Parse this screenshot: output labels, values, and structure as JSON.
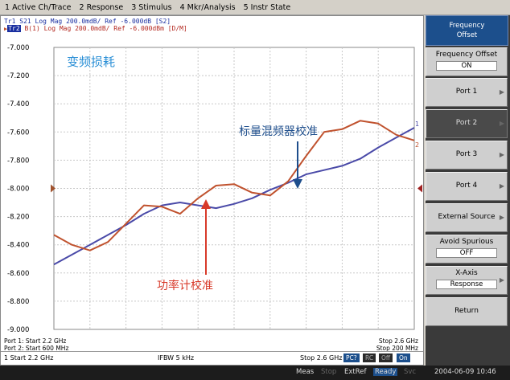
{
  "menu": [
    "1 Active Ch/Trace",
    "2 Response",
    "3 Stimulus",
    "4 Mkr/Analysis",
    "5 Instr State"
  ],
  "trace_header": {
    "tr1": "Tr1 S21 Log Mag 200.0mdB/ Ref -6.000dB [S2]",
    "tr2_badge": "Tr2",
    "tr2": " B(1) Log Mag 200.0mdB/ Ref -6.000dBm [D/M]"
  },
  "annotations": {
    "title": "变频损耗",
    "scalar": "标量混频器校准",
    "power": "功率计校准"
  },
  "footer": {
    "left1": "Port 1: Start 2.2 GHz",
    "left2": "Port 2: Start 600 MHz",
    "right1": "Stop 2.6 GHz",
    "right2": "Stop 200 MHz"
  },
  "status": {
    "start": "1  Start 2.2 GHz",
    "ifbw": "IFBW 5 kHz",
    "stop": "Stop 2.6 GHz",
    "chips": [
      "PC?",
      "RC",
      "Off",
      "On"
    ]
  },
  "softkeys": {
    "title_line1": "Frequency",
    "title_line2": "Offset",
    "freq_offset_label": "Frequency Offset",
    "freq_offset_value": "ON",
    "port1": "Port 1",
    "port2": "Port 2",
    "port3": "Port 3",
    "port4": "Port 4",
    "external_source": "External Source",
    "avoid_spurious_label": "Avoid Spurious",
    "avoid_spurious_value": "OFF",
    "xaxis_label": "X-Axis",
    "xaxis_value": "Response",
    "return": "Return"
  },
  "bottombar": {
    "meas": "Meas",
    "stop": "Stop",
    "extref": "ExtRef",
    "ready": "Ready",
    "svc": "Svc",
    "datetime": "2004-06-09 10:46"
  },
  "colors": {
    "trace1": "#4a4aa8",
    "trace2": "#c0522e",
    "scalar_arrow": "#1e4e8c",
    "power_arrow": "#d83a2a",
    "annotation_blue": "#2a8fd6"
  },
  "chart_data": {
    "type": "line",
    "ylim": [
      -9.0,
      -7.0
    ],
    "yticks": [
      "-7.000",
      "-7.200",
      "-7.400",
      "-7.600",
      "-7.800",
      "-8.000",
      "-8.200",
      "-8.400",
      "-8.600",
      "-8.800",
      "-9.000"
    ],
    "x": [
      0,
      0.05,
      0.1,
      0.15,
      0.2,
      0.25,
      0.3,
      0.35,
      0.4,
      0.45,
      0.5,
      0.55,
      0.6,
      0.65,
      0.7,
      0.75,
      0.8,
      0.85,
      0.9,
      0.95,
      1.0
    ],
    "series": [
      {
        "name": "Tr1",
        "marker": "1",
        "values": [
          -8.54,
          -8.47,
          -8.4,
          -8.33,
          -8.26,
          -8.18,
          -8.12,
          -8.1,
          -8.12,
          -8.14,
          -8.11,
          -8.07,
          -8.01,
          -7.96,
          -7.9,
          -7.87,
          -7.84,
          -7.79,
          -7.71,
          -7.64,
          -7.57
        ]
      },
      {
        "name": "Tr2",
        "marker": "2",
        "values": [
          -8.33,
          -8.4,
          -8.44,
          -8.38,
          -8.25,
          -8.12,
          -8.13,
          -8.18,
          -8.07,
          -7.98,
          -7.97,
          -8.03,
          -8.05,
          -7.95,
          -7.77,
          -7.6,
          -7.58,
          -7.52,
          -7.54,
          -7.62,
          -7.66
        ]
      }
    ]
  }
}
